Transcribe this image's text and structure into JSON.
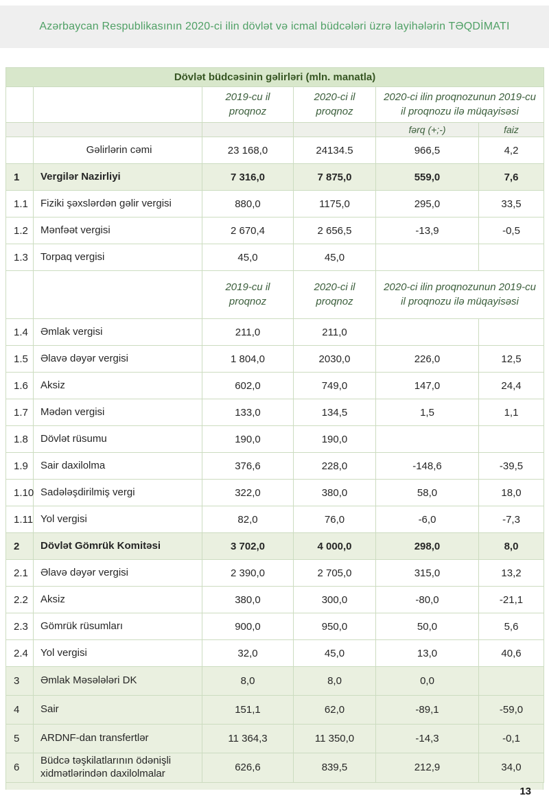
{
  "page": {
    "header_title": "Azərbaycan Respublikasının  2020-ci ilin dövlət və icmal büdcələri üzrə layihələrin TƏQDİMATI",
    "page_number": "13"
  },
  "table": {
    "title": "Dövlət büdcəsinin gəlirləri (mln. manatla)",
    "col_2019": "2019-cu il\nproqnoz",
    "col_2020": "2020-ci il\nproqnoz",
    "col_compare": "2020-ci ilin proqnozunun 2019-cu il proqnozu ilə müqayisəsi",
    "col_ferq": "fərq (+;-)",
    "col_faiz": "faiz",
    "rows": [
      {
        "num": "",
        "name": "Gəlirlərin cəmi",
        "v2019": "23 168,0",
        "v2020": "24134.5",
        "ferq": "966,5",
        "faiz": "4,2",
        "style": "total"
      },
      {
        "num": "1",
        "name": "Vergilər Nazirliyi",
        "v2019": "7 316,0",
        "v2020": "7 875,0",
        "ferq": "559,0",
        "faiz": "7,6",
        "style": "section-bold"
      },
      {
        "num": "1.1",
        "name": "Fiziki şəxslərdən gəlir vergisi",
        "v2019": "880,0",
        "v2020": "1175,0",
        "ferq": "295,0",
        "faiz": "33,5"
      },
      {
        "num": "1.2",
        "name": "Mənfəət vergisi",
        "v2019": "2 670,4",
        "v2020": "2 656,5",
        "ferq": "-13,9",
        "faiz": "-0,5"
      },
      {
        "num": "1.3",
        "name": "Torpaq vergisi",
        "v2019": "45,0",
        "v2020": "45,0",
        "ferq": "",
        "faiz": ""
      },
      {
        "type": "header"
      },
      {
        "num": "1.4",
        "name": "Əmlak vergisi",
        "v2019": "211,0",
        "v2020": "211,0",
        "ferq": "",
        "faiz": ""
      },
      {
        "num": "1.5",
        "name": "Əlavə dəyər vergisi",
        "v2019": "1 804,0",
        "v2020": "2030,0",
        "ferq": "226,0",
        "faiz": "12,5"
      },
      {
        "num": "1.6",
        "name": "Aksiz",
        "v2019": "602,0",
        "v2020": "749,0",
        "ferq": "147,0",
        "faiz": "24,4"
      },
      {
        "num": "1.7",
        "name": "Mədən vergisi",
        "v2019": "133,0",
        "v2020": "134,5",
        "ferq": "1,5",
        "faiz": "1,1"
      },
      {
        "num": "1.8",
        "name": "Dövlət rüsumu",
        "v2019": "190,0",
        "v2020": "190,0",
        "ferq": "",
        "faiz": ""
      },
      {
        "num": "1.9",
        "name": "Sair daxilolma",
        "v2019": "376,6",
        "v2020": "228,0",
        "ferq": "-148,6",
        "faiz": "-39,5"
      },
      {
        "num": "1.10",
        "name": "Sadələşdirilmiş  vergi",
        "v2019": "322,0",
        "v2020": "380,0",
        "ferq": "58,0",
        "faiz": "18,0"
      },
      {
        "num": "1.11",
        "name": "Yol vergisi",
        "v2019": "82,0",
        "v2020": "76,0",
        "ferq": "-6,0",
        "faiz": "-7,3"
      },
      {
        "num": "2",
        "name": "Dövlət Gömrük Komitəsi",
        "v2019": "3 702,0",
        "v2020": "4 000,0",
        "ferq": "298,0",
        "faiz": "8,0",
        "style": "section-bold"
      },
      {
        "num": "2.1",
        "name": "Əlavə dəyər vergisi",
        "v2019": "2 390,0",
        "v2020": "2 705,0",
        "ferq": "315,0",
        "faiz": "13,2"
      },
      {
        "num": "2.2",
        "name": "Aksiz",
        "v2019": "380,0",
        "v2020": "300,0",
        "ferq": "-80,0",
        "faiz": "-21,1"
      },
      {
        "num": "2.3",
        "name": "Gömrük  rüsumları",
        "v2019": "900,0",
        "v2020": "950,0",
        "ferq": "50,0",
        "faiz": "5,6"
      },
      {
        "num": "2.4",
        "name": "Yol vergisi",
        "v2019": "32,0",
        "v2020": "45,0",
        "ferq": "13,0",
        "faiz": "40,6"
      },
      {
        "num": "3",
        "name": "Əmlak Məsələləri DK",
        "v2019": "8,0",
        "v2020": "8,0",
        "ferq": "0,0",
        "faiz": "",
        "style": "section"
      },
      {
        "num": "4",
        "name": "Sair",
        "v2019": "151,1",
        "v2020": "62,0",
        "ferq": "-89,1",
        "faiz": "-59,0",
        "style": "section"
      },
      {
        "num": "5",
        "name": "ARDNF-dan transfertlər",
        "v2019": "11 364,3",
        "v2020": "11 350,0",
        "ferq": "-14,3",
        "faiz": "-0,1",
        "style": "section"
      },
      {
        "num": "6",
        "name": "Büdcə təşkilatlarının ödənişli xidmətlərindən daxilolmalar",
        "v2019": "626,6",
        "v2020": "839,5",
        "ferq": "212,9",
        "faiz": "34,0",
        "style": "section"
      }
    ]
  }
}
